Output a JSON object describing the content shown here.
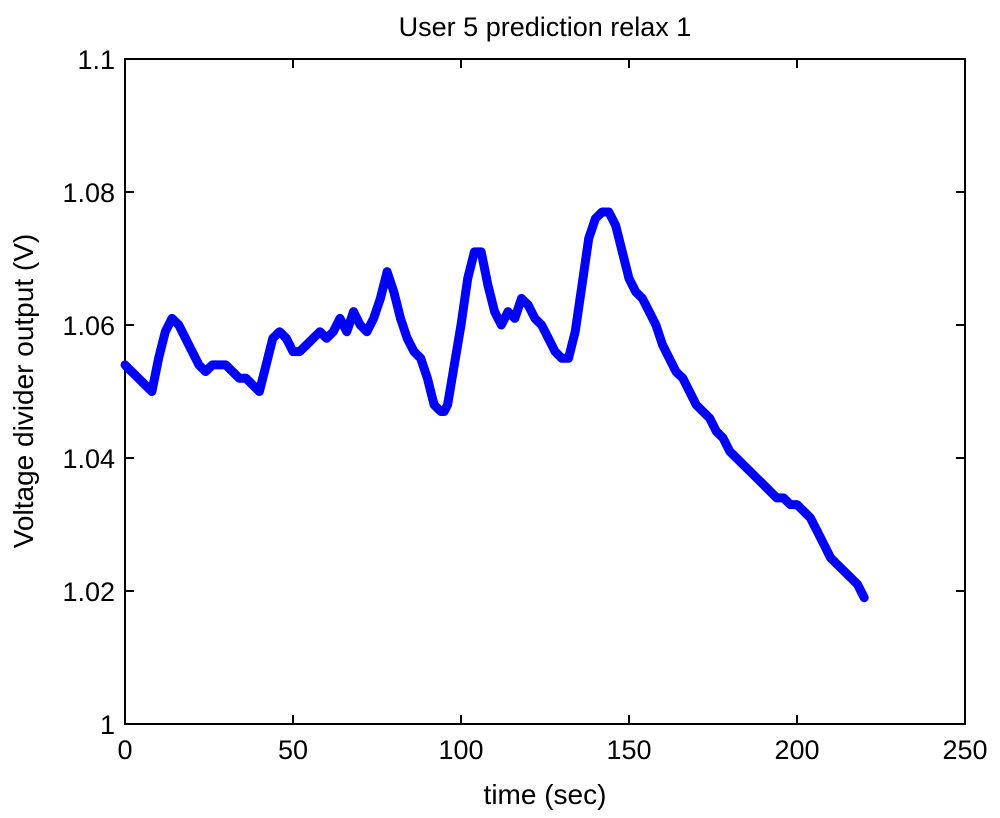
{
  "chart_data": {
    "type": "line",
    "title": "User 5 prediction relax 1",
    "xlabel": "time (sec)",
    "ylabel": "Voltage divider output (V)",
    "xlim": [
      0,
      250
    ],
    "ylim": [
      1.0,
      1.1
    ],
    "xticks": [
      0,
      50,
      100,
      150,
      200,
      250
    ],
    "xtick_labels": [
      "0",
      "50",
      "100",
      "150",
      "200",
      "250"
    ],
    "yticks": [
      1.0,
      1.02,
      1.04,
      1.06,
      1.08,
      1.1
    ],
    "ytick_labels": [
      "1",
      "1.02",
      "1.04",
      "1.06",
      "1.08",
      "1.1"
    ],
    "grid": false,
    "legend": "none",
    "series": [
      {
        "color": "#0000ff",
        "x": [
          0,
          2,
          4,
          6,
          8,
          10,
          12,
          14,
          16,
          18,
          20,
          22,
          24,
          26,
          28,
          30,
          32,
          34,
          36,
          38,
          40,
          42,
          44,
          46,
          48,
          50,
          52,
          54,
          56,
          58,
          60,
          62,
          64,
          66,
          68,
          70,
          72,
          74,
          76,
          78,
          80,
          82,
          84,
          86,
          88,
          90,
          92,
          94,
          95,
          96,
          98,
          100,
          102,
          104,
          106,
          108,
          110,
          112,
          114,
          116,
          118,
          120,
          122,
          124,
          126,
          128,
          130,
          132,
          134,
          136,
          138,
          140,
          142,
          144,
          146,
          148,
          150,
          152,
          154,
          156,
          158,
          160,
          162,
          164,
          166,
          168,
          170,
          172,
          174,
          176,
          178,
          180,
          182,
          184,
          186,
          188,
          190,
          192,
          194,
          196,
          198,
          200,
          202,
          204,
          206,
          208,
          210,
          212,
          214,
          216,
          218,
          220
        ],
        "y": [
          1.054,
          1.053,
          1.052,
          1.051,
          1.05,
          1.055,
          1.059,
          1.061,
          1.06,
          1.058,
          1.056,
          1.054,
          1.053,
          1.054,
          1.054,
          1.054,
          1.053,
          1.052,
          1.052,
          1.051,
          1.05,
          1.054,
          1.058,
          1.059,
          1.058,
          1.056,
          1.056,
          1.057,
          1.058,
          1.059,
          1.058,
          1.059,
          1.061,
          1.059,
          1.062,
          1.06,
          1.059,
          1.061,
          1.064,
          1.068,
          1.065,
          1.061,
          1.058,
          1.056,
          1.055,
          1.052,
          1.048,
          1.047,
          1.047,
          1.048,
          1.054,
          1.06,
          1.067,
          1.071,
          1.071,
          1.066,
          1.062,
          1.06,
          1.062,
          1.061,
          1.064,
          1.063,
          1.061,
          1.06,
          1.058,
          1.056,
          1.055,
          1.055,
          1.059,
          1.066,
          1.073,
          1.076,
          1.077,
          1.077,
          1.075,
          1.071,
          1.067,
          1.065,
          1.064,
          1.062,
          1.06,
          1.057,
          1.055,
          1.053,
          1.052,
          1.05,
          1.048,
          1.047,
          1.046,
          1.044,
          1.043,
          1.041,
          1.04,
          1.039,
          1.038,
          1.037,
          1.036,
          1.035,
          1.034,
          1.034,
          1.033,
          1.033,
          1.032,
          1.031,
          1.029,
          1.027,
          1.025,
          1.024,
          1.023,
          1.022,
          1.021,
          1.019
        ]
      }
    ]
  }
}
